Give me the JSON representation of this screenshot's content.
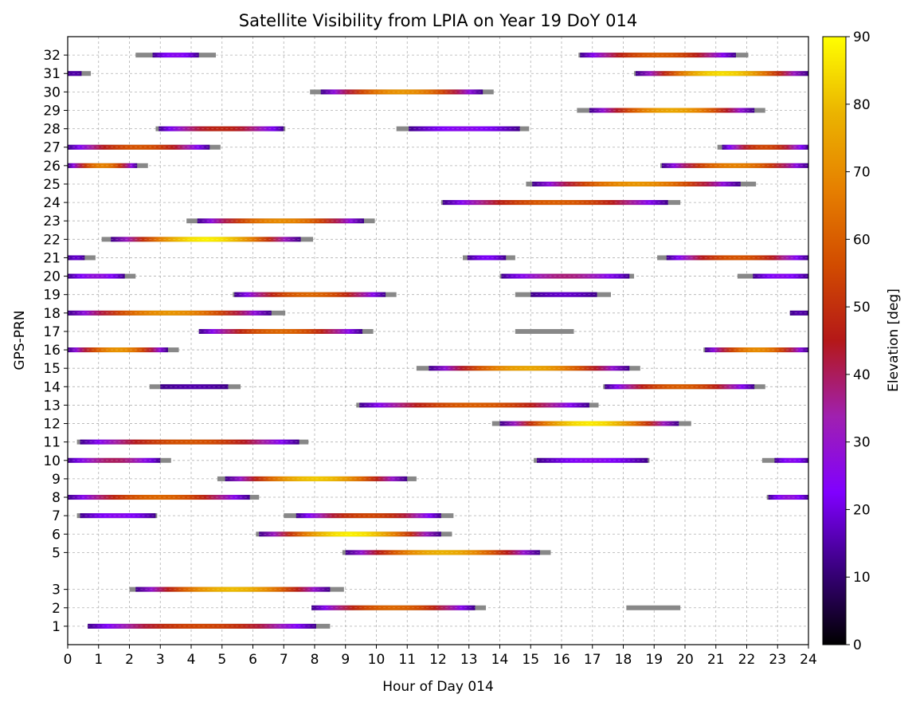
{
  "chart_data": {
    "type": "timeline",
    "title": "Satellite Visibility from LPIA on Year 19 DoY 014",
    "xlabel": "Hour of Day 014",
    "ylabel": "GPS-PRN",
    "xlim": [
      0,
      24
    ],
    "xticks": [
      0,
      1,
      2,
      3,
      4,
      5,
      6,
      7,
      8,
      9,
      10,
      11,
      12,
      13,
      14,
      15,
      16,
      17,
      18,
      19,
      20,
      21,
      22,
      23,
      24
    ],
    "yticks": [
      1,
      2,
      3,
      5,
      6,
      7,
      8,
      9,
      10,
      11,
      12,
      13,
      14,
      15,
      16,
      17,
      18,
      19,
      20,
      21,
      22,
      23,
      24,
      25,
      26,
      27,
      28,
      29,
      30,
      31,
      32
    ],
    "grid": true,
    "colorbar": {
      "label": "Elevation [deg]",
      "range": [
        0,
        90
      ],
      "ticks": [
        0,
        10,
        20,
        30,
        40,
        50,
        60,
        70,
        80,
        90
      ],
      "colormap": "gnuplot",
      "stops": [
        "#000000",
        "#3a007f",
        "#8000ff",
        "#a020b0",
        "#b41818",
        "#d24c00",
        "#e68000",
        "#ebb400",
        "#ffff00"
      ]
    },
    "no_elevation_color": "#888888",
    "passes": [
      {
        "prn": 1,
        "start": 0.65,
        "end": 8.5,
        "gray_start": 0.65,
        "gray_end": 8.05,
        "peak": 55
      },
      {
        "prn": 2,
        "start": 7.9,
        "end": 13.55,
        "gray_start": 7.9,
        "gray_end": 13.2,
        "peak": 62
      },
      {
        "prn": 2,
        "start": 18.1,
        "end": 19.85,
        "gray_only": true
      },
      {
        "prn": 3,
        "start": 2.0,
        "end": 8.95,
        "gray_start": 2.2,
        "gray_end": 8.5,
        "peak": 80
      },
      {
        "prn": 5,
        "start": 8.9,
        "end": 15.65,
        "gray_start": 9.0,
        "gray_end": 15.3,
        "peak": 78
      },
      {
        "prn": 6,
        "start": 6.1,
        "end": 12.45,
        "gray_start": 6.2,
        "gray_end": 12.1,
        "peak": 88
      },
      {
        "prn": 7,
        "start": 0.3,
        "end": 2.9,
        "gray_start": 0.4,
        "gray_end": 2.85,
        "peak": 25
      },
      {
        "prn": 7,
        "start": 7.0,
        "end": 12.5,
        "gray_start": 7.4,
        "gray_end": 12.1,
        "peak": 55
      },
      {
        "prn": 8,
        "start": 0.0,
        "end": 6.2,
        "gray_start": 0.0,
        "gray_end": 5.9,
        "peak": 62
      },
      {
        "prn": 8,
        "start": 22.65,
        "end": 24.0,
        "gray_start": 22.7,
        "gray_end": 24.0,
        "peak": 28
      },
      {
        "prn": 9,
        "start": 4.85,
        "end": 11.3,
        "gray_start": 5.1,
        "gray_end": 11.0,
        "peak": 82
      },
      {
        "prn": 10,
        "start": 0.0,
        "end": 3.35,
        "gray_start": 0.0,
        "gray_end": 3.0,
        "peak": 40
      },
      {
        "prn": 10,
        "start": 15.1,
        "end": 18.85,
        "gray_start": 15.2,
        "gray_end": 18.8,
        "peak": 25
      },
      {
        "prn": 10,
        "start": 22.5,
        "end": 24.0,
        "gray_start": 22.9,
        "gray_end": 24.0,
        "peak": 25
      },
      {
        "prn": 11,
        "start": 0.3,
        "end": 7.8,
        "gray_start": 0.4,
        "gray_end": 7.5,
        "peak": 58
      },
      {
        "prn": 12,
        "start": 13.75,
        "end": 20.2,
        "gray_start": 14.0,
        "gray_end": 19.8,
        "peak": 87
      },
      {
        "prn": 13,
        "start": 9.35,
        "end": 17.2,
        "gray_start": 9.45,
        "gray_end": 16.9,
        "peak": 60
      },
      {
        "prn": 14,
        "start": 2.65,
        "end": 5.6,
        "gray_start": 3.0,
        "gray_end": 5.2,
        "peak": 15
      },
      {
        "prn": 14,
        "start": 17.35,
        "end": 22.6,
        "gray_start": 17.4,
        "gray_end": 22.25,
        "peak": 60
      },
      {
        "prn": 15,
        "start": 11.3,
        "end": 18.55,
        "gray_start": 11.7,
        "gray_end": 18.2,
        "peak": 76
      },
      {
        "prn": 16,
        "start": 0.0,
        "end": 3.6,
        "gray_start": 0.0,
        "gray_end": 3.25,
        "peak": 72
      },
      {
        "prn": 16,
        "start": 20.6,
        "end": 24.0,
        "gray_start": 20.65,
        "gray_end": 24.0,
        "peak": 70
      },
      {
        "prn": 17,
        "start": 4.25,
        "end": 9.9,
        "gray_start": 4.25,
        "gray_end": 9.55,
        "peak": 62
      },
      {
        "prn": 17,
        "start": 14.5,
        "end": 16.4,
        "gray_only": true
      },
      {
        "prn": 18,
        "start": 0.0,
        "end": 7.05,
        "gray_start": 0.0,
        "gray_end": 6.6,
        "peak": 72
      },
      {
        "prn": 18,
        "start": 23.4,
        "end": 24.0,
        "gray_start": 23.4,
        "gray_end": 24.0,
        "peak": 15
      },
      {
        "prn": 19,
        "start": 5.35,
        "end": 10.65,
        "gray_start": 5.4,
        "gray_end": 10.3,
        "peak": 62
      },
      {
        "prn": 19,
        "start": 14.5,
        "end": 17.6,
        "gray_start": 15.0,
        "gray_end": 17.15,
        "peak": 18
      },
      {
        "prn": 20,
        "start": 0.0,
        "end": 2.2,
        "gray_start": 0.0,
        "gray_end": 1.85,
        "peak": 28
      },
      {
        "prn": 20,
        "start": 14.0,
        "end": 18.35,
        "gray_start": 14.05,
        "gray_end": 18.2,
        "peak": 38
      },
      {
        "prn": 20,
        "start": 21.7,
        "end": 24.0,
        "gray_start": 22.2,
        "gray_end": 24.0,
        "peak": 25
      },
      {
        "prn": 21,
        "start": 0.0,
        "end": 0.9,
        "gray_start": 0.0,
        "gray_end": 0.55,
        "peak": 18
      },
      {
        "prn": 21,
        "start": 12.8,
        "end": 14.5,
        "gray_start": 12.95,
        "gray_end": 14.2,
        "peak": 22
      },
      {
        "prn": 21,
        "start": 19.1,
        "end": 24.0,
        "gray_start": 19.4,
        "gray_end": 24.0,
        "peak": 58
      },
      {
        "prn": 22,
        "start": 1.1,
        "end": 7.95,
        "gray_start": 1.4,
        "gray_end": 7.55,
        "peak": 88
      },
      {
        "prn": 23,
        "start": 3.85,
        "end": 9.95,
        "gray_start": 4.2,
        "gray_end": 9.6,
        "peak": 70
      },
      {
        "prn": 24,
        "start": 12.1,
        "end": 19.85,
        "gray_start": 12.15,
        "gray_end": 19.45,
        "peak": 60
      },
      {
        "prn": 25,
        "start": 14.85,
        "end": 22.3,
        "gray_start": 15.05,
        "gray_end": 21.8,
        "peak": 72
      },
      {
        "prn": 26,
        "start": 0.0,
        "end": 2.6,
        "gray_start": 0.0,
        "gray_end": 2.25,
        "peak": 68
      },
      {
        "prn": 26,
        "start": 19.2,
        "end": 24.0,
        "gray_start": 19.25,
        "gray_end": 24.0,
        "peak": 68
      },
      {
        "prn": 27,
        "start": 0.0,
        "end": 4.95,
        "gray_start": 0.0,
        "gray_end": 4.6,
        "peak": 58
      },
      {
        "prn": 27,
        "start": 21.05,
        "end": 24.0,
        "gray_start": 21.2,
        "gray_end": 24.0,
        "peak": 55
      },
      {
        "prn": 28,
        "start": 2.85,
        "end": 7.05,
        "gray_start": 2.95,
        "gray_end": 7.0,
        "peak": 48
      },
      {
        "prn": 28,
        "start": 10.65,
        "end": 14.95,
        "gray_start": 11.05,
        "gray_end": 14.65,
        "peak": 25
      },
      {
        "prn": 29,
        "start": 16.5,
        "end": 22.6,
        "gray_start": 16.9,
        "gray_end": 22.25,
        "peak": 76
      },
      {
        "prn": 30,
        "start": 7.85,
        "end": 13.8,
        "gray_start": 8.2,
        "gray_end": 13.45,
        "peak": 72
      },
      {
        "prn": 31,
        "start": 0.0,
        "end": 0.75,
        "gray_start": 0.0,
        "gray_end": 0.45,
        "peak": 15
      },
      {
        "prn": 31,
        "start": 18.35,
        "end": 24.0,
        "gray_start": 18.4,
        "gray_end": 24.0,
        "peak": 85
      },
      {
        "prn": 32,
        "start": 2.2,
        "end": 4.8,
        "gray_start": 2.75,
        "gray_end": 4.25,
        "peak": 25
      },
      {
        "prn": 32,
        "start": 16.55,
        "end": 22.05,
        "gray_start": 16.6,
        "gray_end": 21.65,
        "peak": 60
      }
    ]
  }
}
